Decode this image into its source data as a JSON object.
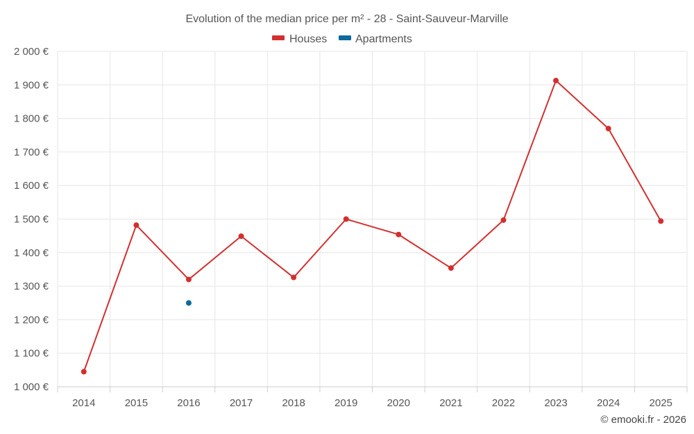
{
  "chart_data": {
    "type": "line",
    "title": "Evolution of the median price per m² - 28 - Saint-Sauveur-Marville",
    "categories": [
      "2014",
      "2015",
      "2016",
      "2017",
      "2018",
      "2019",
      "2020",
      "2021",
      "2022",
      "2023",
      "2024",
      "2025"
    ],
    "ylim": [
      1000,
      2000
    ],
    "yticks": [
      1000,
      1100,
      1200,
      1300,
      1400,
      1500,
      1600,
      1700,
      1800,
      1900,
      2000
    ],
    "ytick_labels": [
      "1 000 €",
      "1 100 €",
      "1 200 €",
      "1 300 €",
      "1 400 €",
      "1 500 €",
      "1 600 €",
      "1 700 €",
      "1 800 €",
      "1 900 €",
      "2 000 €"
    ],
    "grid": true,
    "legend_position": "top-center",
    "series": [
      {
        "name": "Houses",
        "color": "#d32f2f",
        "values": [
          1045,
          1482,
          1320,
          1449,
          1326,
          1500,
          1454,
          1354,
          1497,
          1913,
          1770,
          1494
        ]
      },
      {
        "name": "Apartments",
        "color": "#0d6a9c",
        "values": [
          null,
          null,
          1250,
          null,
          null,
          null,
          null,
          null,
          null,
          null,
          null,
          null
        ]
      }
    ],
    "credit": "© emooki.fr - 2026"
  }
}
